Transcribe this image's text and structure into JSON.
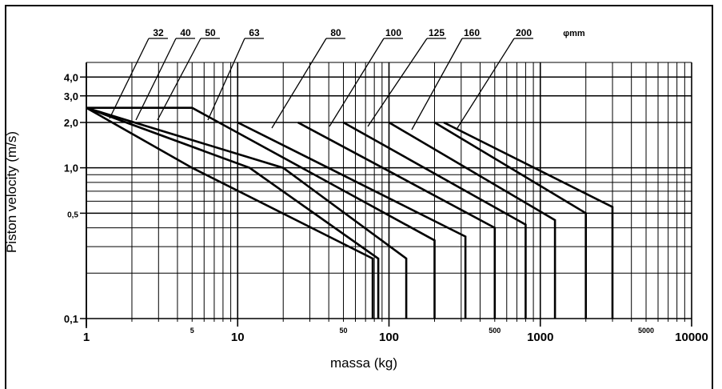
{
  "chart_data": {
    "type": "line",
    "xlabel": "massa (kg)",
    "ylabel": "Piston velocity (m/s)",
    "xscale": "log",
    "yscale": "log",
    "xlim": [
      1,
      10000
    ],
    "ylim": [
      0.1,
      5
    ],
    "grid": true,
    "x_tick_labels_major": [
      "1",
      "10",
      "100",
      "1000",
      "10000"
    ],
    "x_tick_labels_minor": [
      "5",
      "50",
      "500",
      "5000"
    ],
    "y_tick_labels": [
      "0,1",
      "0,5",
      "1,0",
      "2,0",
      "3,0",
      "4,0"
    ],
    "series_unit_label": "φmm",
    "series": [
      {
        "name": "32",
        "points": [
          [
            1,
            2.5
          ],
          [
            5,
            1.0
          ],
          [
            78,
            0.25
          ],
          [
            78,
            0.1
          ]
        ]
      },
      {
        "name": "40",
        "points": [
          [
            1,
            2.5
          ],
          [
            12,
            1.0
          ],
          [
            85,
            0.25
          ],
          [
            85,
            0.1
          ]
        ]
      },
      {
        "name": "50",
        "points": [
          [
            1,
            2.5
          ],
          [
            20,
            1.0
          ],
          [
            130,
            0.25
          ],
          [
            130,
            0.1
          ]
        ]
      },
      {
        "name": "63",
        "points": [
          [
            1,
            2.5
          ],
          [
            5,
            2.5
          ],
          [
            200,
            0.33
          ],
          [
            200,
            0.1
          ]
        ]
      },
      {
        "name": "80",
        "points": [
          [
            10,
            2.0
          ],
          [
            320,
            0.35
          ],
          [
            320,
            0.1
          ]
        ]
      },
      {
        "name": "100",
        "points": [
          [
            25,
            2.0
          ],
          [
            500,
            0.4
          ],
          [
            500,
            0.1
          ]
        ]
      },
      {
        "name": "125",
        "points": [
          [
            50,
            2.0
          ],
          [
            800,
            0.42
          ],
          [
            800,
            0.1
          ]
        ]
      },
      {
        "name": "160",
        "points": [
          [
            100,
            2.0
          ],
          [
            1250,
            0.45
          ],
          [
            1250,
            0.1
          ]
        ]
      },
      {
        "name": "200",
        "points": [
          [
            200,
            2.0
          ],
          [
            2000,
            0.5
          ],
          [
            2000,
            0.1
          ]
        ]
      },
      {
        "name": "",
        "points": [
          [
            230,
            2.0
          ],
          [
            3000,
            0.55
          ],
          [
            3000,
            0.1
          ]
        ]
      }
    ]
  }
}
